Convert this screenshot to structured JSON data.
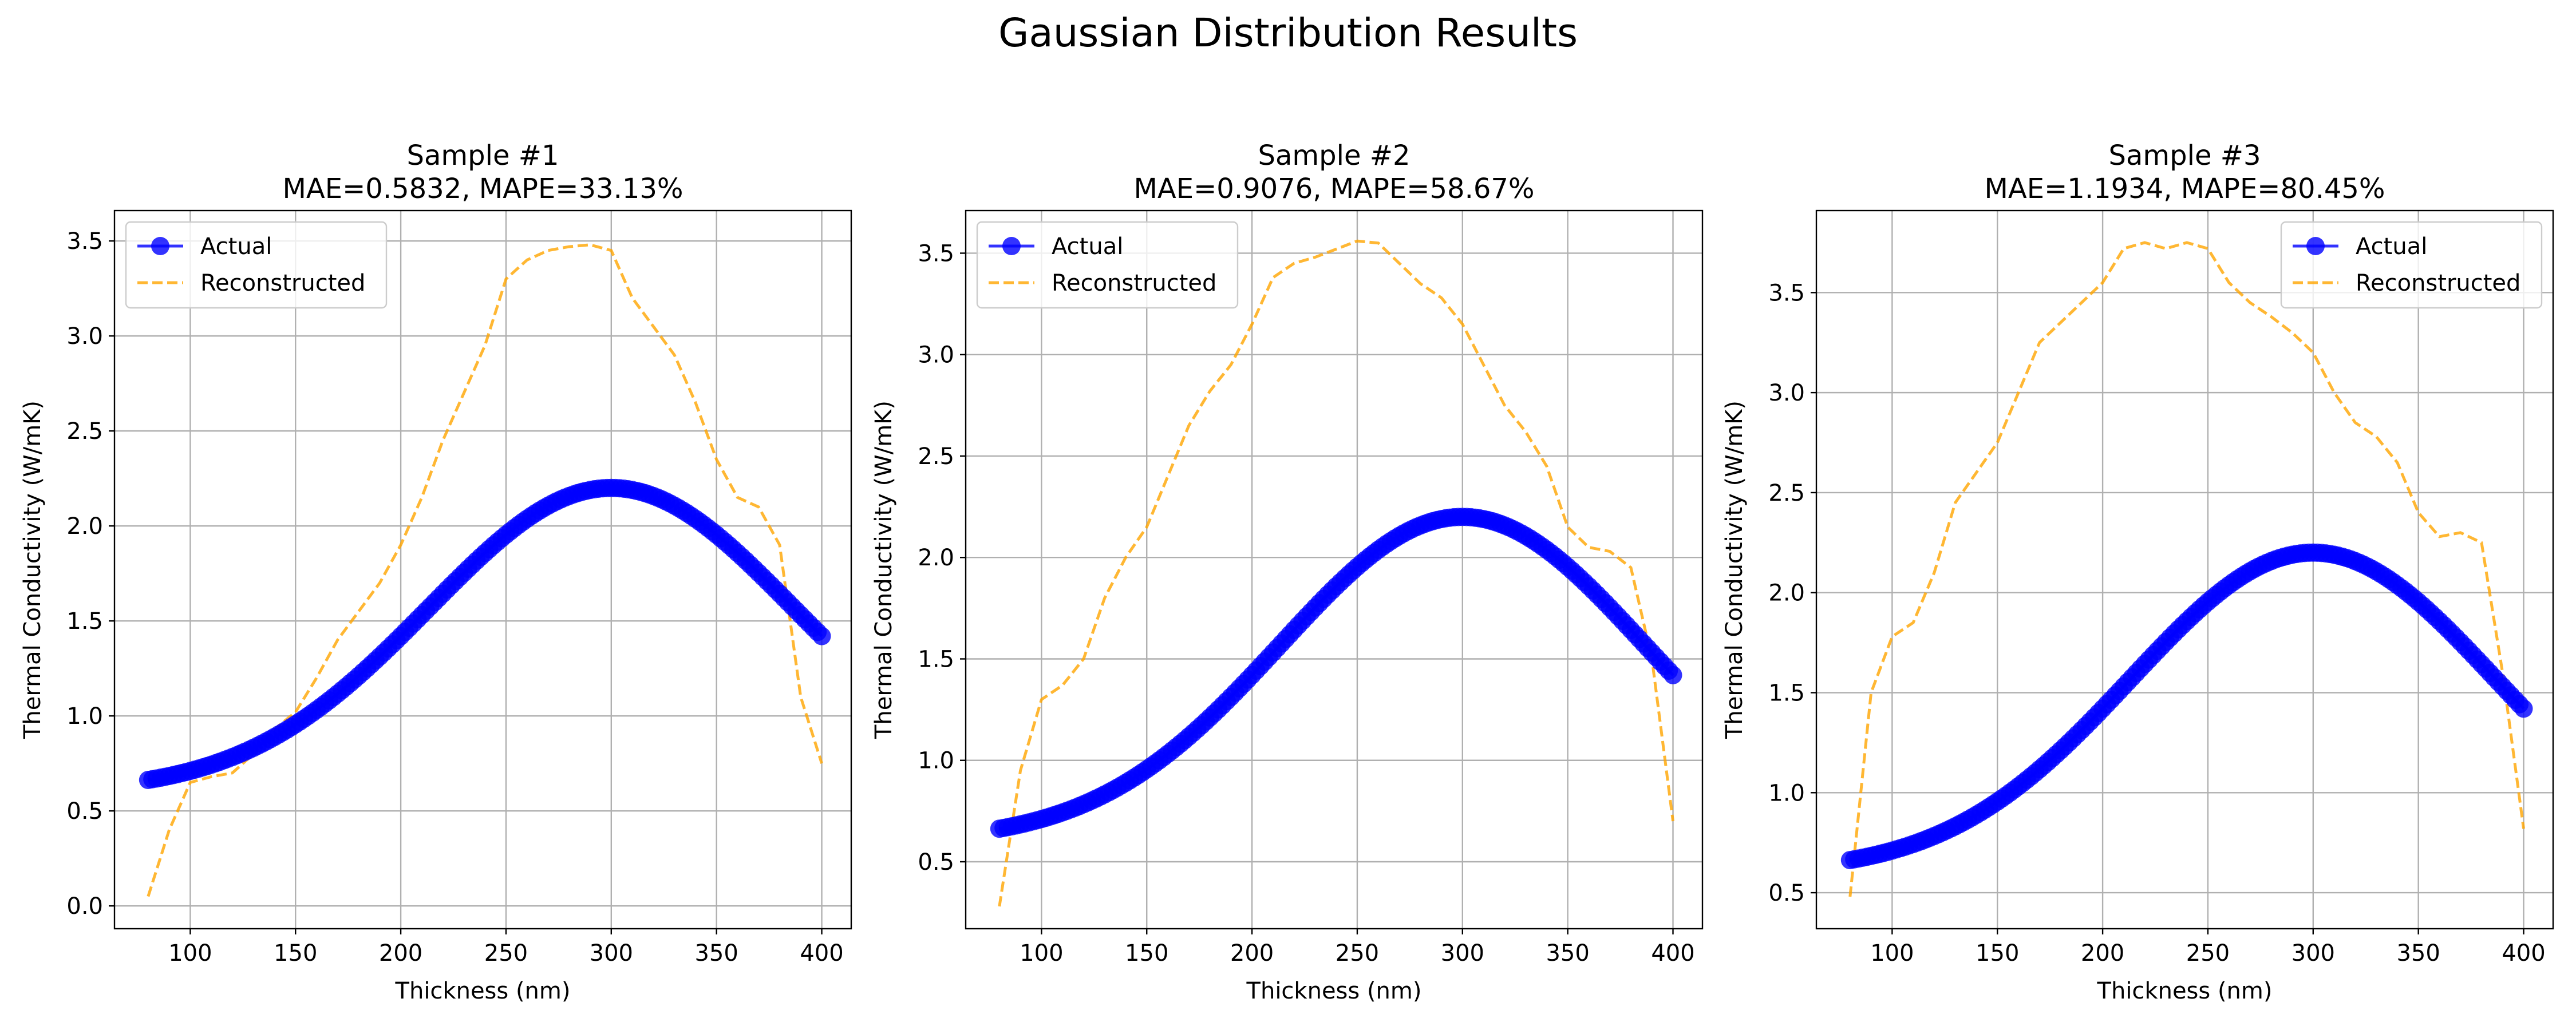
{
  "figure": {
    "title": "Gaussian Distribution Results"
  },
  "colors": {
    "actual": "#0000ff",
    "reconstructed": "#ffa500",
    "grid": "#b0b0b0"
  },
  "chart_data": [
    {
      "type": "line",
      "title": "Sample #1",
      "subtitle": "MAE=0.5832, MAPE=33.13%",
      "xlabel": "Thickness (nm)",
      "ylabel": "Thermal Conductivity (W/mK)",
      "xlim": [
        64,
        414
      ],
      "ylim": [
        -0.12,
        3.66
      ],
      "xticks": [
        100,
        150,
        200,
        250,
        300,
        350,
        400
      ],
      "yticks": [
        0.0,
        0.5,
        1.0,
        1.5,
        2.0,
        2.5,
        3.0,
        3.5
      ],
      "grid": true,
      "legend": "top-left",
      "actual": {
        "name": "Actual",
        "x_range": [
          80,
          400
        ],
        "peak": 300,
        "sigma": 86.5,
        "base": 0.6,
        "amp": 1.6
      },
      "series": [
        {
          "name": "Reconstructed",
          "x": [
            80,
            90,
            100,
            110,
            120,
            130,
            140,
            150,
            160,
            170,
            180,
            190,
            200,
            210,
            220,
            230,
            240,
            250,
            260,
            270,
            280,
            290,
            300,
            310,
            320,
            330,
            340,
            350,
            360,
            370,
            380,
            390,
            400
          ],
          "y": [
            0.05,
            0.4,
            0.65,
            0.68,
            0.7,
            0.8,
            0.93,
            1.02,
            1.2,
            1.4,
            1.55,
            1.7,
            1.9,
            2.15,
            2.45,
            2.7,
            2.95,
            3.3,
            3.4,
            3.45,
            3.47,
            3.48,
            3.45,
            3.2,
            3.05,
            2.9,
            2.65,
            2.35,
            2.15,
            2.1,
            1.9,
            1.1,
            0.75
          ]
        }
      ]
    },
    {
      "type": "line",
      "title": "Sample #2",
      "subtitle": "MAE=0.9076, MAPE=58.67%",
      "xlabel": "Thickness (nm)",
      "ylabel": "Thermal Conductivity (W/mK)",
      "xlim": [
        64,
        414
      ],
      "ylim": [
        0.17,
        3.71
      ],
      "xticks": [
        100,
        150,
        200,
        250,
        300,
        350,
        400
      ],
      "yticks": [
        0.5,
        1.0,
        1.5,
        2.0,
        2.5,
        3.0,
        3.5
      ],
      "grid": true,
      "legend": "top-left",
      "actual": {
        "name": "Actual",
        "x_range": [
          80,
          400
        ],
        "peak": 300,
        "sigma": 86.5,
        "base": 0.6,
        "amp": 1.6
      },
      "series": [
        {
          "name": "Reconstructed",
          "x": [
            80,
            90,
            100,
            110,
            120,
            130,
            140,
            150,
            160,
            170,
            180,
            190,
            200,
            210,
            220,
            230,
            240,
            250,
            260,
            270,
            280,
            290,
            300,
            310,
            320,
            330,
            340,
            350,
            360,
            370,
            380,
            390,
            400
          ],
          "y": [
            0.28,
            0.95,
            1.3,
            1.37,
            1.5,
            1.8,
            2.0,
            2.15,
            2.4,
            2.65,
            2.82,
            2.95,
            3.15,
            3.38,
            3.45,
            3.48,
            3.52,
            3.56,
            3.55,
            3.45,
            3.35,
            3.28,
            3.15,
            2.95,
            2.75,
            2.62,
            2.45,
            2.15,
            2.05,
            2.03,
            1.95,
            1.5,
            0.7
          ]
        }
      ]
    },
    {
      "type": "line",
      "title": "Sample #3",
      "subtitle": "MAE=1.1934, MAPE=80.45%",
      "xlabel": "Thickness (nm)",
      "ylabel": "Thermal Conductivity (W/mK)",
      "xlim": [
        64,
        414
      ],
      "ylim": [
        0.32,
        3.91
      ],
      "xticks": [
        100,
        150,
        200,
        250,
        300,
        350,
        400
      ],
      "yticks": [
        0.5,
        1.0,
        1.5,
        2.0,
        2.5,
        3.0,
        3.5
      ],
      "grid": true,
      "legend": "top-right",
      "actual": {
        "name": "Actual",
        "x_range": [
          80,
          400
        ],
        "peak": 300,
        "sigma": 86.5,
        "base": 0.6,
        "amp": 1.6
      },
      "series": [
        {
          "name": "Reconstructed",
          "x": [
            80,
            90,
            100,
            110,
            120,
            130,
            140,
            150,
            160,
            170,
            180,
            190,
            200,
            210,
            220,
            230,
            240,
            250,
            260,
            270,
            280,
            290,
            300,
            310,
            320,
            330,
            340,
            350,
            360,
            370,
            380,
            390,
            400
          ],
          "y": [
            0.48,
            1.5,
            1.78,
            1.85,
            2.1,
            2.45,
            2.6,
            2.75,
            3.0,
            3.25,
            3.35,
            3.45,
            3.55,
            3.72,
            3.75,
            3.72,
            3.75,
            3.72,
            3.55,
            3.45,
            3.38,
            3.3,
            3.2,
            3.0,
            2.85,
            2.78,
            2.65,
            2.4,
            2.28,
            2.3,
            2.25,
            1.6,
            0.82
          ]
        }
      ]
    }
  ]
}
